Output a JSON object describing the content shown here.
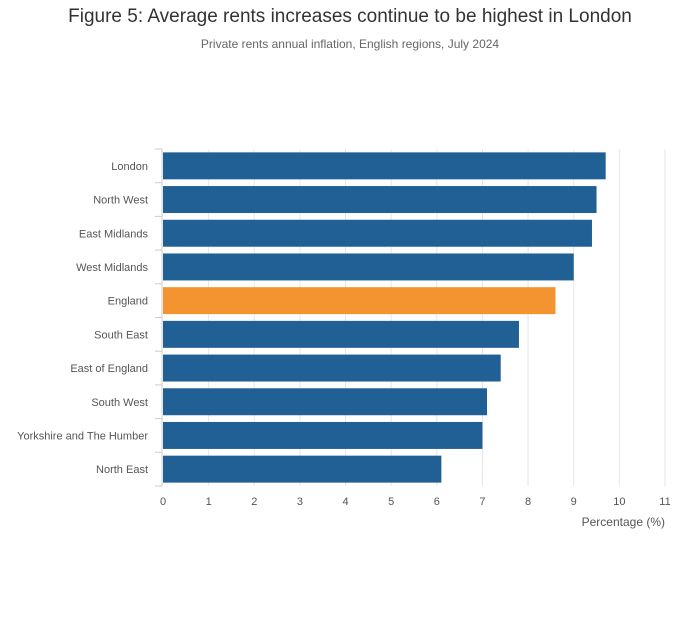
{
  "chart_data": {
    "type": "bar",
    "orientation": "horizontal",
    "title": "Figure 5: Average rents increases continue to be highest in London",
    "subtitle": "Private rents annual inflation, English regions, July 2024",
    "xlabel": "Percentage (%)",
    "categories": [
      "London",
      "North West",
      "East Midlands",
      "West Midlands",
      "England",
      "South East",
      "East of England",
      "South West",
      "Yorkshire and The Humber",
      "North East"
    ],
    "values": [
      9.7,
      9.5,
      9.4,
      9.0,
      8.6,
      7.8,
      7.4,
      7.1,
      7.0,
      6.1
    ],
    "highlight": "England",
    "colors": {
      "bar": "#206095",
      "highlight": "#f39431",
      "grid": "#e6e6e6"
    },
    "xlim": [
      0,
      11
    ],
    "xticks": [
      0,
      1,
      2,
      3,
      4,
      5,
      6,
      7,
      8,
      9,
      10,
      11
    ],
    "grid": true,
    "legend": "none"
  }
}
